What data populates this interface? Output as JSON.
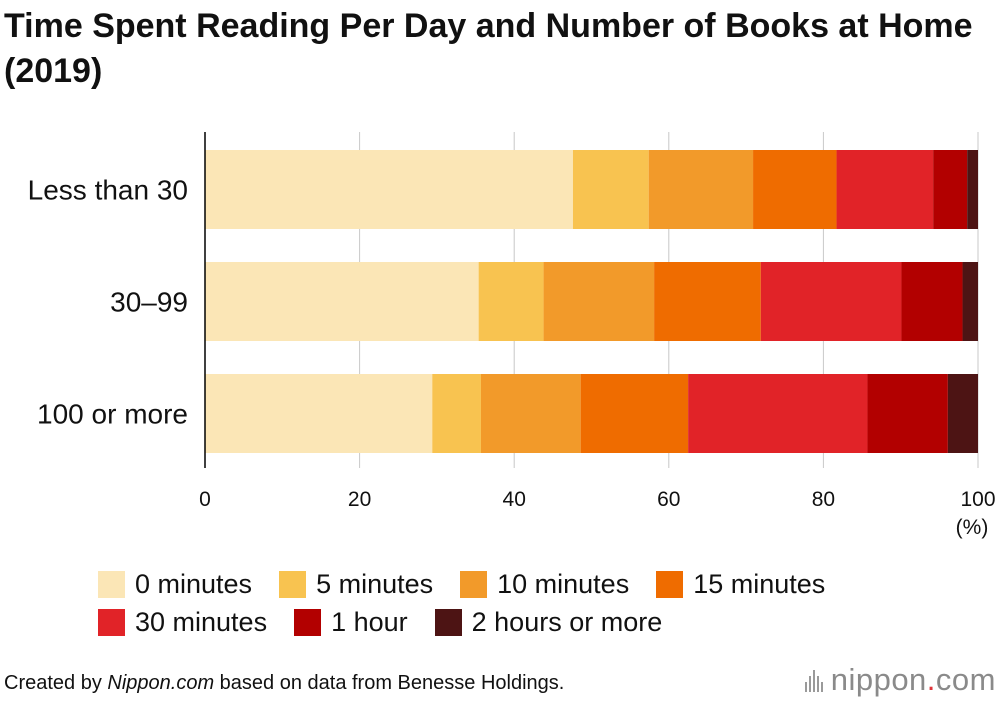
{
  "title": "Time Spent Reading Per Day and Number of Books at Home (2019)",
  "chart_data": {
    "type": "bar",
    "orientation": "horizontal",
    "stacked": true,
    "categories": [
      "Less than 30",
      "30–99",
      "100 or more"
    ],
    "series": [
      {
        "name": "0 minutes",
        "color": "#fbe6b6",
        "values": [
          47.6,
          35.4,
          29.4
        ]
      },
      {
        "name": "5 minutes",
        "color": "#f8c350",
        "values": [
          9.8,
          8.4,
          6.3
        ]
      },
      {
        "name": "10 minutes",
        "color": "#f29a2a",
        "values": [
          13.5,
          14.3,
          12.9
        ]
      },
      {
        "name": "15 minutes",
        "color": "#ef6c00",
        "values": [
          10.8,
          13.8,
          13.9
        ]
      },
      {
        "name": "30 minutes",
        "color": "#e12328",
        "values": [
          12.5,
          18.2,
          23.2
        ]
      },
      {
        "name": "1 hour",
        "color": "#b20000",
        "values": [
          4.4,
          7.9,
          10.4
        ]
      },
      {
        "name": "2 hours or more",
        "color": "#4d1414",
        "values": [
          1.4,
          2.0,
          3.9
        ]
      }
    ],
    "x_ticks": [
      "0",
      "20",
      "40",
      "60",
      "80",
      "100"
    ],
    "xlim": [
      0,
      100
    ],
    "x_unit": "(%)",
    "grid": true,
    "legend_position": "bottom"
  },
  "legend": {
    "rows": [
      [
        {
          "label": "0 minutes",
          "color": "#fbe6b6"
        },
        {
          "label": "5 minutes",
          "color": "#f8c350"
        },
        {
          "label": "10 minutes",
          "color": "#f29a2a"
        },
        {
          "label": "15 minutes",
          "color": "#ef6c00"
        }
      ],
      [
        {
          "label": "30 minutes",
          "color": "#e12328"
        },
        {
          "label": "1 hour",
          "color": "#b20000"
        },
        {
          "label": "2 hours or more",
          "color": "#4d1414"
        }
      ]
    ]
  },
  "footer": {
    "prefix": "Created by ",
    "source_name": "Nippon.com",
    "suffix": " based on data from Benesse Holdings."
  },
  "logo": {
    "text_main": "nippon",
    "dot": ".",
    "text_tld": "com"
  }
}
